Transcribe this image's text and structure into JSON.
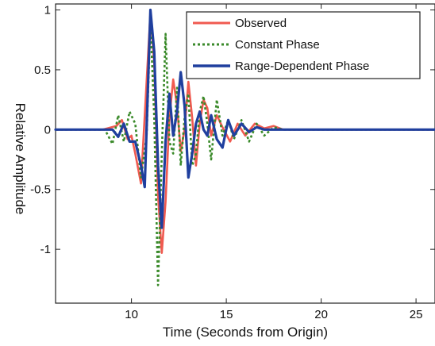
{
  "chart_data": {
    "type": "line",
    "title": "",
    "xlabel": "Time (Seconds from Origin)",
    "ylabel": "Relative Amplitude",
    "xlim": [
      6,
      26
    ],
    "ylim": [
      -1.45,
      1.05
    ],
    "xticks": [
      10,
      15,
      20,
      25
    ],
    "xtick_labels": [
      "10",
      "15",
      "20",
      "25"
    ],
    "yticks": [
      -1,
      -0.5,
      0,
      0.5,
      1
    ],
    "ytick_labels": [
      "-1",
      "-0.5",
      "0",
      "0.5",
      "1"
    ],
    "grid": false,
    "legend_position": "top-right",
    "series": [
      {
        "name": "Observed",
        "color": "#f05a50",
        "style": "solid",
        "x": [
          6,
          8.5,
          9.2,
          9.5,
          9.8,
          10.0,
          10.2,
          10.5,
          10.8,
          11.0,
          11.2,
          11.4,
          11.6,
          11.8,
          12.0,
          12.2,
          12.4,
          12.6,
          12.8,
          13.0,
          13.2,
          13.4,
          13.6,
          13.8,
          14.0,
          14.2,
          14.5,
          14.8,
          15.2,
          15.6,
          16.0,
          16.5,
          17.0,
          17.5,
          18.0,
          26
        ],
        "y": [
          0.0,
          0.0,
          0.03,
          0.08,
          -0.08,
          -0.05,
          -0.2,
          -0.45,
          0.4,
          0.98,
          0.55,
          -0.55,
          -1.03,
          -0.6,
          0.1,
          0.42,
          0.2,
          -0.18,
          0.0,
          0.4,
          0.1,
          -0.3,
          0.05,
          0.25,
          0.18,
          -0.05,
          0.12,
          0.02,
          -0.1,
          0.05,
          -0.05,
          0.05,
          0.01,
          0.03,
          0.0,
          0.0
        ]
      },
      {
        "name": "Constant Phase",
        "color": "#3a8a2a",
        "style": "dotted",
        "x": [
          6,
          8.6,
          9.0,
          9.3,
          9.6,
          9.9,
          10.2,
          10.5,
          10.8,
          11.0,
          11.2,
          11.4,
          11.6,
          11.8,
          12.0,
          12.2,
          12.4,
          12.6,
          12.8,
          13.0,
          13.2,
          13.4,
          13.6,
          13.8,
          14.0,
          14.2,
          14.5,
          14.8,
          15.1,
          15.4,
          15.8,
          16.2,
          16.6,
          17.0,
          17.5,
          18.0,
          26
        ],
        "y": [
          0.0,
          0.0,
          -0.12,
          0.12,
          -0.1,
          0.15,
          0.05,
          -0.4,
          -0.05,
          0.9,
          0.1,
          -1.3,
          -0.2,
          0.8,
          -0.1,
          -0.2,
          0.35,
          -0.3,
          0.1,
          0.3,
          -0.3,
          -0.2,
          0.15,
          0.28,
          0.05,
          -0.25,
          0.25,
          -0.05,
          0.08,
          -0.08,
          0.08,
          -0.1,
          0.05,
          -0.05,
          0.02,
          0.0,
          0.0
        ]
      },
      {
        "name": "Range-Dependent Phase",
        "color": "#1f3f9e",
        "style": "solid",
        "x": [
          6,
          9.0,
          9.3,
          9.6,
          9.9,
          10.2,
          10.5,
          10.7,
          11.0,
          11.2,
          11.4,
          11.6,
          11.8,
          12.0,
          12.2,
          12.4,
          12.6,
          12.8,
          13.0,
          13.2,
          13.4,
          13.6,
          13.8,
          14.0,
          14.2,
          14.5,
          14.8,
          15.1,
          15.4,
          15.8,
          16.2,
          16.6,
          17.0,
          17.5,
          26
        ],
        "y": [
          0.0,
          0.0,
          -0.06,
          0.05,
          -0.1,
          -0.1,
          -0.3,
          -0.48,
          1.0,
          0.65,
          -0.3,
          -0.82,
          -0.1,
          0.3,
          -0.05,
          0.15,
          0.48,
          0.2,
          -0.4,
          -0.2,
          0.05,
          0.15,
          0.0,
          -0.05,
          0.12,
          -0.08,
          -0.15,
          0.08,
          -0.05,
          0.05,
          -0.02,
          0.02,
          0.0,
          0.0,
          0.0
        ]
      }
    ]
  }
}
